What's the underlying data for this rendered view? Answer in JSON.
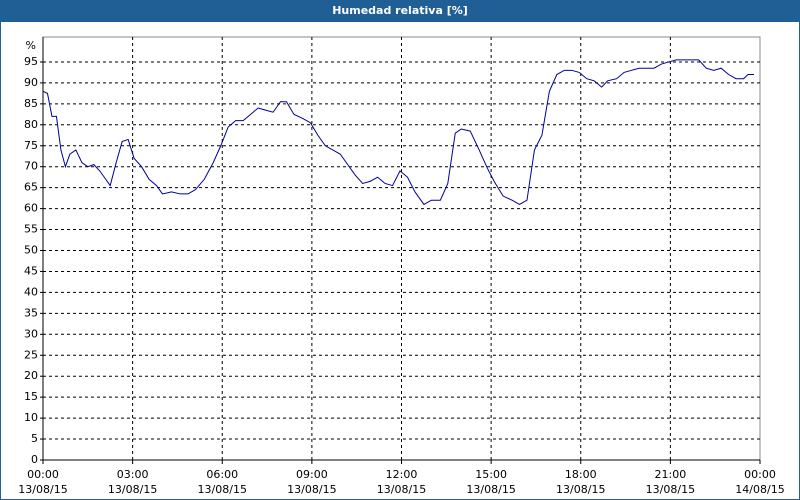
{
  "chart_data": {
    "type": "line",
    "title": "Humedad relativa [%]",
    "y_label": "%",
    "xlim": [
      0,
      24
    ],
    "ylim": [
      0,
      100
    ],
    "xticks": [
      {
        "value": 0,
        "label": "00:00 13/08/15"
      },
      {
        "value": 3,
        "label": "03:00 13/08/15"
      },
      {
        "value": 6,
        "label": "06:00 13/08/15"
      },
      {
        "value": 9,
        "label": "09:00 13/08/15"
      },
      {
        "value": 12,
        "label": "12:00 13/08/15"
      },
      {
        "value": 15,
        "label": "15:00 13/08/15"
      },
      {
        "value": 18,
        "label": "18:00 13/08/15"
      },
      {
        "value": 21,
        "label": "21:00 13/08/15"
      },
      {
        "value": 24,
        "label": "00:00 14/08/15"
      }
    ],
    "yticks": [
      0,
      5,
      10,
      15,
      20,
      25,
      30,
      35,
      40,
      45,
      50,
      55,
      60,
      65,
      70,
      75,
      80,
      85,
      90,
      95
    ],
    "grid": true,
    "series": [
      {
        "name": "Humedad relativa",
        "color": "#00009c",
        "x": [
          0,
          0.15,
          0.3,
          0.45,
          0.6,
          0.75,
          0.9,
          1.1,
          1.3,
          1.5,
          1.7,
          1.9,
          2.1,
          2.25,
          2.45,
          2.65,
          2.85,
          3.05,
          3.3,
          3.55,
          3.8,
          4.0,
          4.3,
          4.6,
          4.85,
          5.1,
          5.4,
          5.7,
          5.95,
          6.2,
          6.45,
          6.7,
          6.95,
          7.2,
          7.45,
          7.7,
          7.95,
          8.15,
          8.4,
          8.7,
          8.95,
          9.2,
          9.45,
          9.7,
          9.95,
          10.2,
          10.45,
          10.7,
          10.95,
          11.2,
          11.45,
          11.7,
          11.95,
          12.2,
          12.45,
          12.75,
          13.0,
          13.3,
          13.55,
          13.8,
          14.0,
          14.3,
          14.6,
          14.85,
          15.1,
          15.4,
          15.7,
          15.95,
          16.2,
          16.45,
          16.7,
          16.95,
          17.2,
          17.45,
          17.7,
          17.95,
          18.2,
          18.45,
          18.7,
          18.9,
          19.2,
          19.45,
          19.7,
          19.95,
          20.2,
          20.45,
          20.7,
          20.95,
          21.2,
          21.45,
          21.7,
          21.95,
          22.2,
          22.45,
          22.7,
          22.95,
          23.2,
          23.45,
          23.6,
          23.8
        ],
        "values": [
          88,
          87.5,
          82,
          82,
          74,
          70,
          73,
          74,
          71,
          70,
          70.5,
          69,
          67,
          65.5,
          71,
          76,
          76.5,
          72,
          70,
          67,
          65.5,
          63.5,
          64,
          63.5,
          63.5,
          64.5,
          67,
          71,
          75,
          79.5,
          81,
          81,
          82.5,
          84,
          83.5,
          83,
          85.5,
          85.5,
          82.5,
          81.5,
          80.5,
          77.5,
          75,
          74,
          73,
          70.5,
          68,
          66,
          66.5,
          67.5,
          66,
          65.5,
          69,
          67.5,
          64,
          61,
          62,
          62,
          66,
          78,
          79,
          78.5,
          74,
          70,
          66.5,
          63,
          62,
          61,
          62,
          74,
          77.5,
          88,
          92,
          93,
          93,
          92.5,
          91,
          90.5,
          89,
          90.5,
          91,
          92.5,
          93,
          93.5,
          93.5,
          93.5,
          94.5,
          95,
          95.5,
          95.5,
          95.5,
          95.5,
          93.5,
          93,
          93.5,
          92,
          91,
          91,
          92,
          92
        ]
      }
    ]
  }
}
